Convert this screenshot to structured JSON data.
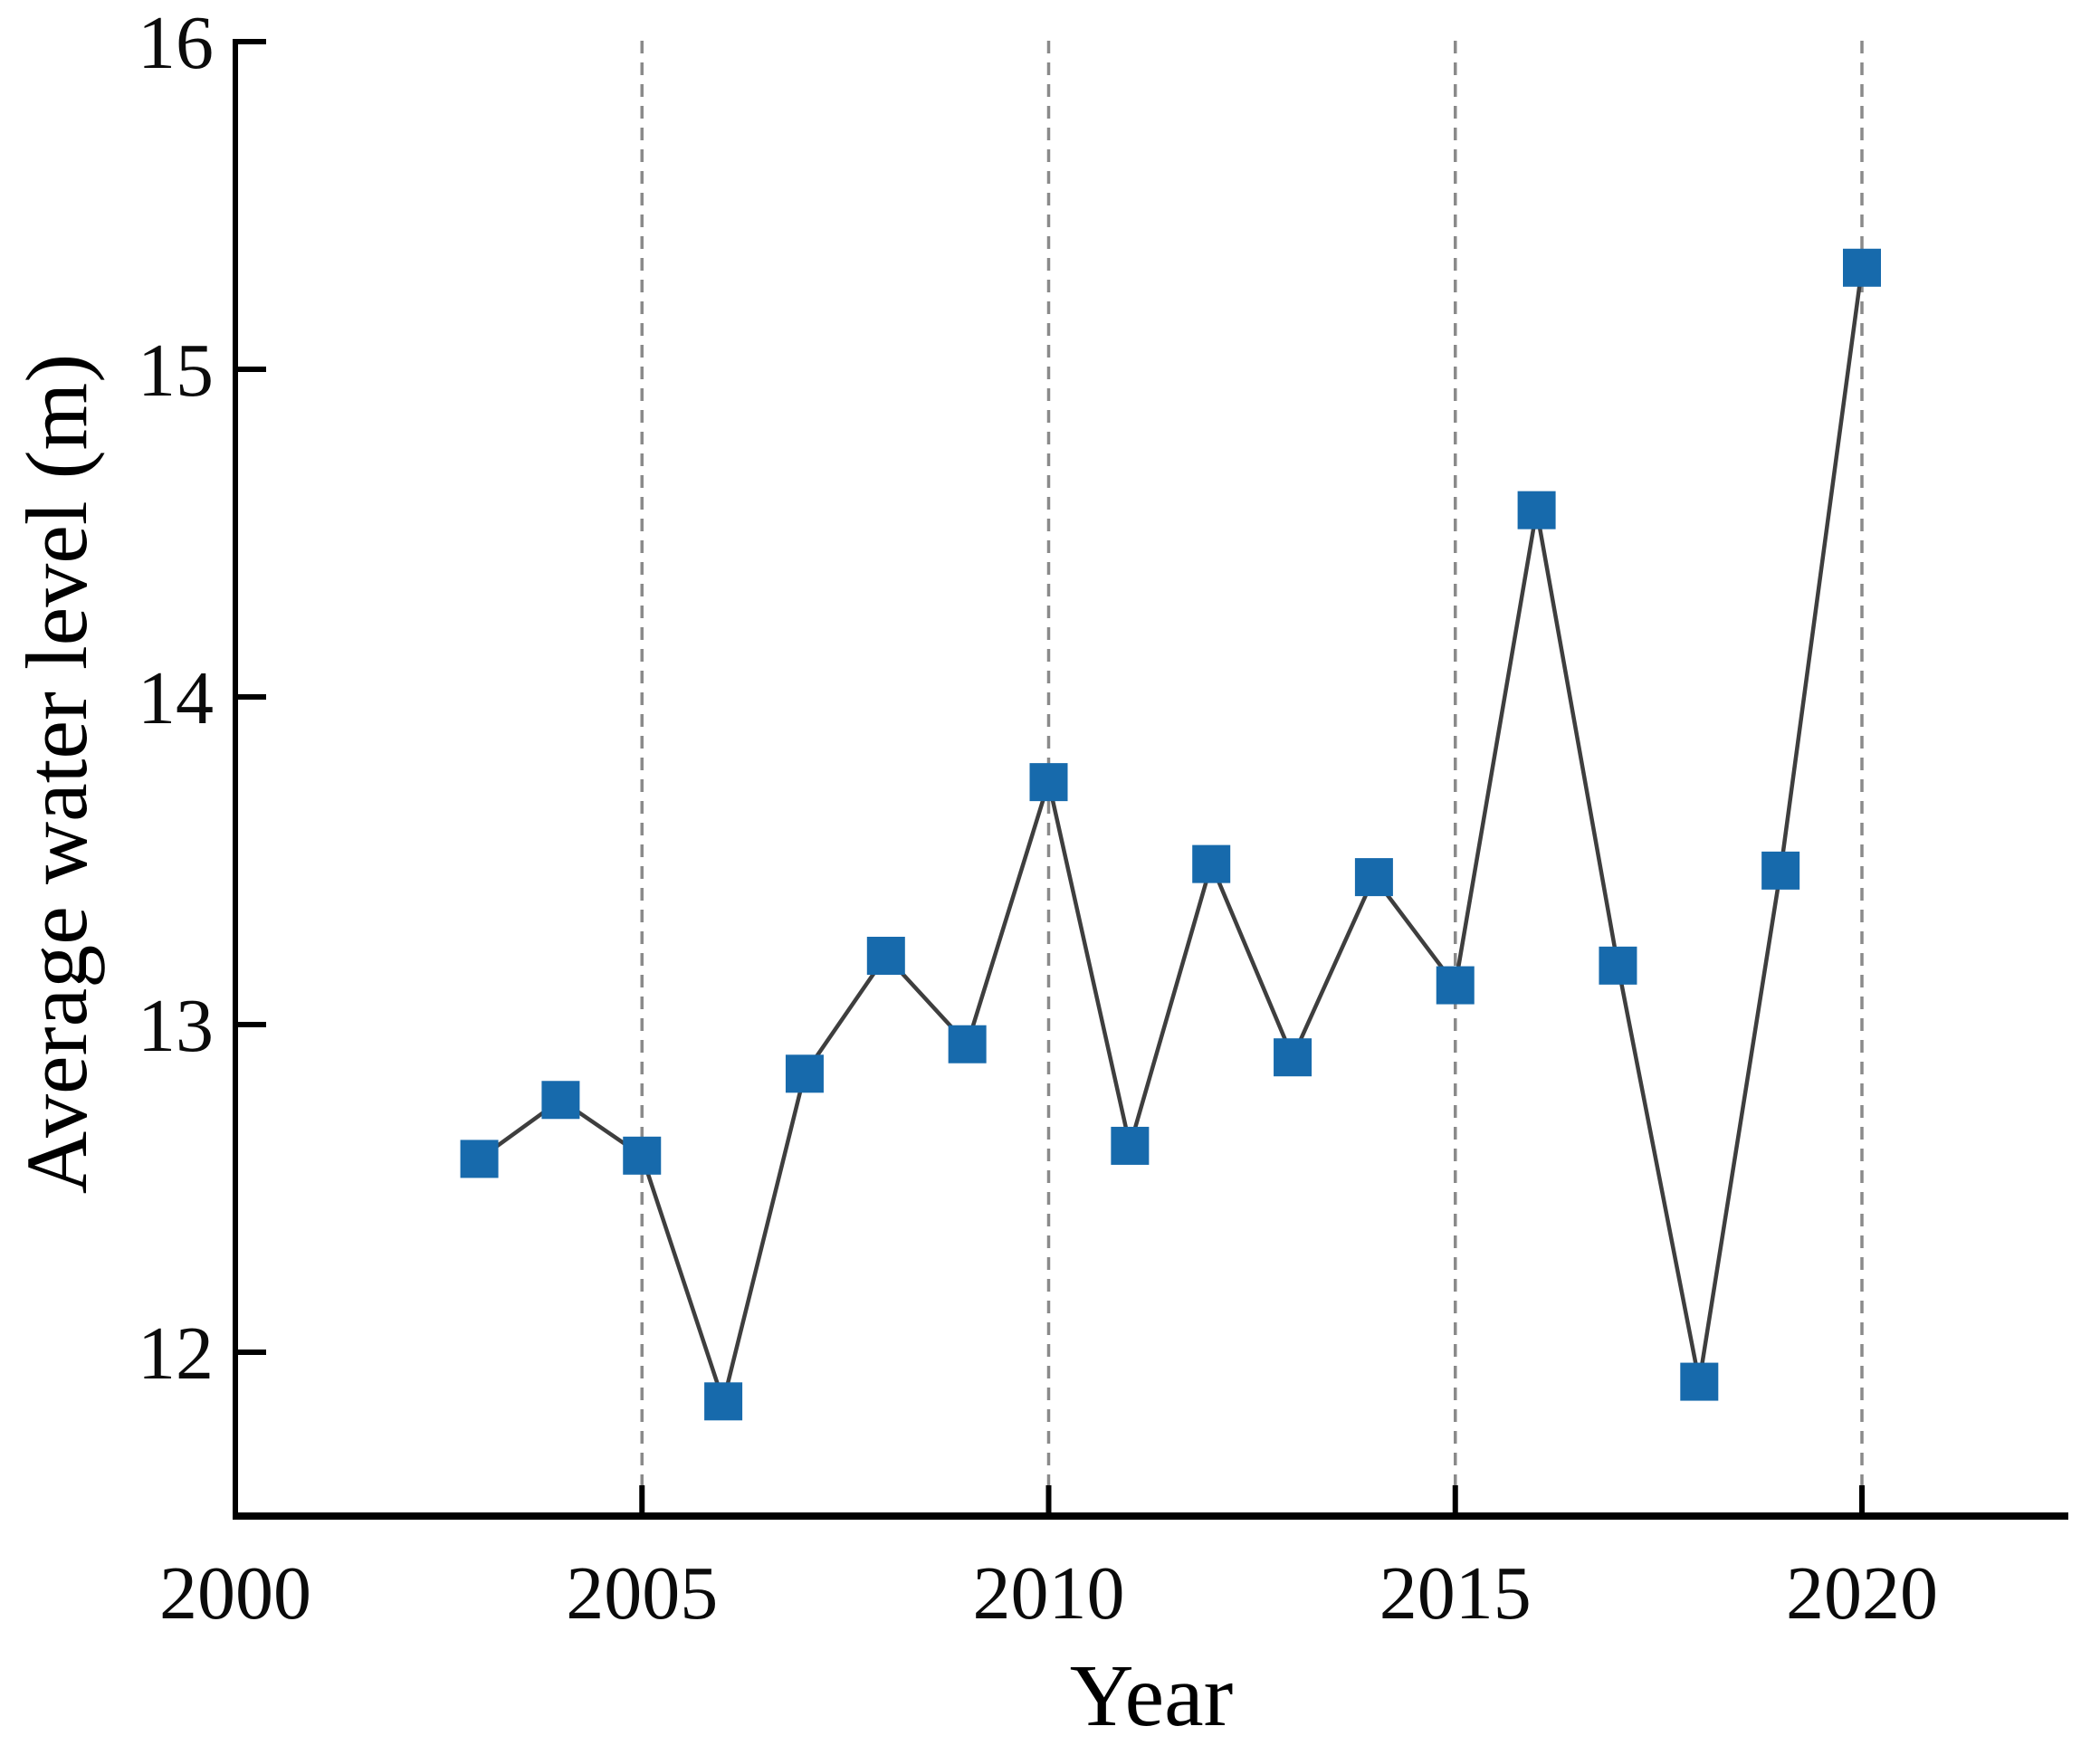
{
  "figure": {
    "background": "#ffffff"
  },
  "chart_data": {
    "type": "line",
    "title": "",
    "xlabel": "Year",
    "ylabel": "Average water level (m)",
    "series": [
      {
        "name": "Average water level",
        "x": [
          2003,
          2004,
          2005,
          2006,
          2007,
          2008,
          2009,
          2010,
          2011,
          2012,
          2013,
          2014,
          2015,
          2016,
          2017,
          2018,
          2019,
          2020
        ],
        "values": [
          12.59,
          12.77,
          12.6,
          11.85,
          12.85,
          13.21,
          12.94,
          13.74,
          12.63,
          13.49,
          12.9,
          13.45,
          13.12,
          14.57,
          13.18,
          11.91,
          13.47,
          15.31
        ]
      }
    ],
    "xticks": [
      "2000",
      "2005",
      "2010",
      "2015",
      "2020"
    ],
    "xtick_values": [
      2000,
      2005,
      2010,
      2015,
      2020
    ],
    "yticks": [
      "12",
      "13",
      "14",
      "15",
      "16"
    ],
    "ytick_values": [
      12,
      13,
      14,
      15,
      16
    ],
    "xlim": [
      2000,
      2022.5
    ],
    "ylim": [
      11.5,
      16
    ],
    "grid": "vertical dashed gridlines at 2005, 2010, 2015, 2020",
    "grid_years": [
      2005,
      2010,
      2015,
      2020
    ],
    "legend": "none",
    "marker": "square",
    "colors": {
      "marker_fill": "#176aac",
      "line": "#3e3e3e",
      "grid": "#8a8a8a",
      "axis": "#000000",
      "text": "#000000"
    }
  }
}
